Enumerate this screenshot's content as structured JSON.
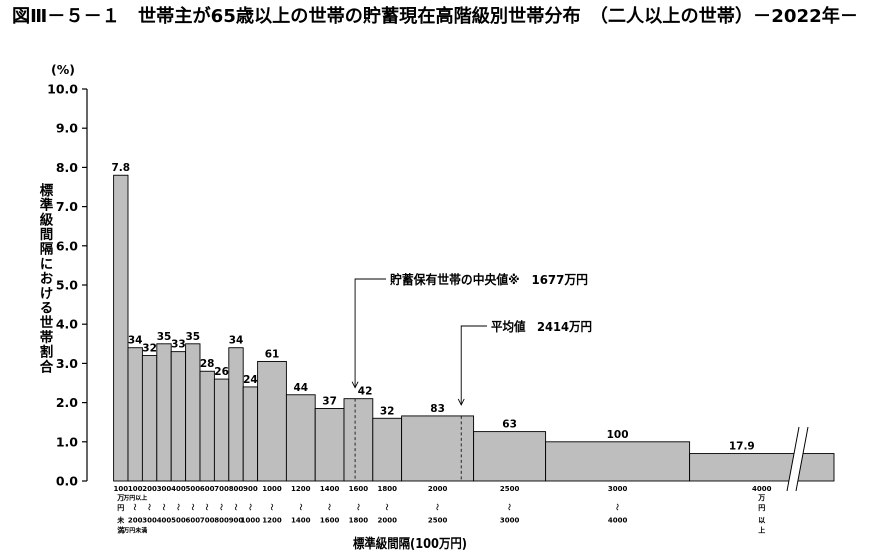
{
  "chart_data": {
    "type": "bar",
    "title": "図Ⅲ－５－１　世帯主が65歳以上の世帯の貯蓄現在高階級別世帯分布　（二人以上の世帯）－2022年－",
    "yunit": "(%)",
    "ylabel": "標準級間隔における世帯割合",
    "xlabel": "標準級間隔(100万円)",
    "ylim": [
      0,
      10
    ],
    "grid": false,
    "yticks": [
      "0.0",
      "1.0",
      "2.0",
      "3.0",
      "4.0",
      "5.0",
      "6.0",
      "7.0",
      "8.0",
      "9.0",
      "10.0"
    ],
    "bins": [
      {
        "from": 0,
        "to": 100,
        "label": "7.8",
        "height": 7.8,
        "tick": [
          "100",
          "万",
          "円",
          "未",
          "満"
        ]
      },
      {
        "from": 100,
        "to": 200,
        "label": "34",
        "height": 3.4,
        "tick": [
          "100",
          "万円以上",
          "～",
          "200",
          "万円未満"
        ]
      },
      {
        "from": 200,
        "to": 300,
        "label": "32",
        "height": 3.2,
        "tick": [
          "200",
          "",
          "～",
          "300",
          ""
        ]
      },
      {
        "from": 300,
        "to": 400,
        "label": "35",
        "height": 3.5,
        "tick": [
          "300",
          "",
          "～",
          "400",
          ""
        ]
      },
      {
        "from": 400,
        "to": 500,
        "label": "33",
        "height": 3.3,
        "tick": [
          "400",
          "",
          "～",
          "500",
          ""
        ]
      },
      {
        "from": 500,
        "to": 600,
        "label": "35",
        "height": 3.5,
        "tick": [
          "500",
          "",
          "～",
          "600",
          ""
        ]
      },
      {
        "from": 600,
        "to": 700,
        "label": "28",
        "height": 2.8,
        "tick": [
          "600",
          "",
          "～",
          "700",
          ""
        ]
      },
      {
        "from": 700,
        "to": 800,
        "label": "26",
        "height": 2.6,
        "tick": [
          "700",
          "",
          "～",
          "800",
          ""
        ]
      },
      {
        "from": 800,
        "to": 900,
        "label": "34",
        "height": 3.4,
        "tick": [
          "800",
          "",
          "～",
          "900",
          ""
        ]
      },
      {
        "from": 900,
        "to": 1000,
        "label": "24",
        "height": 2.4,
        "tick": [
          "900",
          "",
          "～",
          "1000",
          ""
        ]
      },
      {
        "from": 1000,
        "to": 1200,
        "label": "61",
        "height": 3.05,
        "tick": [
          "1000",
          "",
          "～",
          "1200",
          ""
        ]
      },
      {
        "from": 1200,
        "to": 1400,
        "label": "44",
        "height": 2.2,
        "tick": [
          "1200",
          "",
          "～",
          "1400",
          ""
        ]
      },
      {
        "from": 1400,
        "to": 1600,
        "label": "37",
        "height": 1.85,
        "tick": [
          "1400",
          "",
          "～",
          "1600",
          ""
        ]
      },
      {
        "from": 1600,
        "to": 1800,
        "label": "42",
        "height": 2.1,
        "tick": [
          "1600",
          "",
          "～",
          "1800",
          ""
        ]
      },
      {
        "from": 1800,
        "to": 2000,
        "label": "32",
        "height": 1.6,
        "tick": [
          "1800",
          "",
          "～",
          "2000",
          ""
        ]
      },
      {
        "from": 2000,
        "to": 2500,
        "label": "83",
        "height": 1.66,
        "tick": [
          "2000",
          "",
          "～",
          "2500",
          ""
        ]
      },
      {
        "from": 2500,
        "to": 3000,
        "label": "63",
        "height": 1.26,
        "tick": [
          "2500",
          "",
          "～",
          "3000",
          ""
        ]
      },
      {
        "from": 3000,
        "to": 4000,
        "label": "100",
        "height": 1.0,
        "tick": [
          "3000",
          "",
          "～",
          "4000",
          ""
        ]
      },
      {
        "from": 4000,
        "to": null,
        "label": "17.9",
        "height": 0.7,
        "tick": [
          "4000",
          "万",
          "円",
          "以",
          "上"
        ]
      }
    ],
    "median": {
      "x": 1677,
      "text": "貯蓄保有世帯の中央値※　1677万円"
    },
    "mean": {
      "x": 2414,
      "text": "平均値　2414万円"
    },
    "colors": {
      "bar_fill": "#bebebe",
      "bar_stroke": "#000000",
      "text": "#000000"
    }
  }
}
